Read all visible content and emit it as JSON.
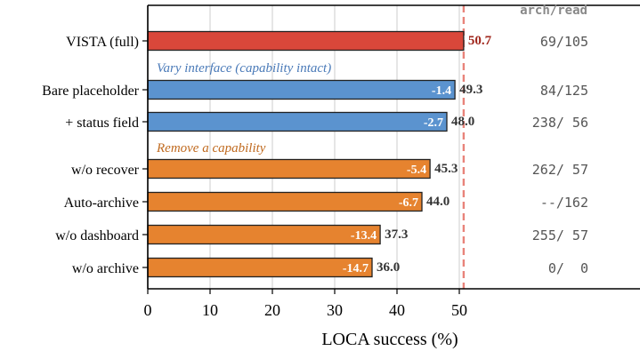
{
  "chart_data": {
    "type": "bar",
    "orientation": "horizontal",
    "xlabel": "LOCA success (%)",
    "xlim": [
      0,
      62.5
    ],
    "xticks": [
      0,
      10,
      20,
      30,
      40,
      50
    ],
    "grid": "vertical",
    "reference_line": {
      "value": 50.7,
      "style": "dashed",
      "color": "#e8837a"
    },
    "side_column_header": "arch/read",
    "groups": [
      {
        "label": "",
        "label_color": "",
        "bars": [
          0
        ]
      },
      {
        "label": "Vary interface (capability intact)",
        "label_color": "#4a7ab8",
        "bars": [
          1,
          2
        ]
      },
      {
        "label": "Remove a capability",
        "label_color": "#c06a1f",
        "bars": [
          3,
          4,
          5,
          6
        ]
      }
    ],
    "bars": [
      {
        "category": "VISTA (full)",
        "value": 50.7,
        "value_label": "50.7",
        "delta": "",
        "side": "69/105",
        "color": "#d9473a",
        "label_color": "#a0271d"
      },
      {
        "category": "Bare placeholder",
        "value": 49.3,
        "value_label": "49.3",
        "delta": "-1.4",
        "side": "84/125",
        "color": "#5b93cf",
        "label_color": "#333333"
      },
      {
        "category": "+ status field",
        "value": 48.0,
        "value_label": "48.0",
        "delta": "-2.7",
        "side": "238/ 56",
        "color": "#5b93cf",
        "label_color": "#333333"
      },
      {
        "category": "w/o recover",
        "value": 45.3,
        "value_label": "45.3",
        "delta": "-5.4",
        "side": "262/ 57",
        "color": "#e6832f",
        "label_color": "#333333"
      },
      {
        "category": "Auto-archive",
        "value": 44.0,
        "value_label": "44.0",
        "delta": "-6.7",
        "side": "--/162",
        "color": "#e6832f",
        "label_color": "#333333"
      },
      {
        "category": "w/o dashboard",
        "value": 37.3,
        "value_label": "37.3",
        "delta": "-13.4",
        "side": "255/ 57",
        "color": "#e6832f",
        "label_color": "#333333"
      },
      {
        "category": "w/o archive",
        "value": 36.0,
        "value_label": "36.0",
        "delta": "-14.7",
        "side": "0/  0",
        "color": "#e6832f",
        "label_color": "#333333"
      }
    ]
  }
}
